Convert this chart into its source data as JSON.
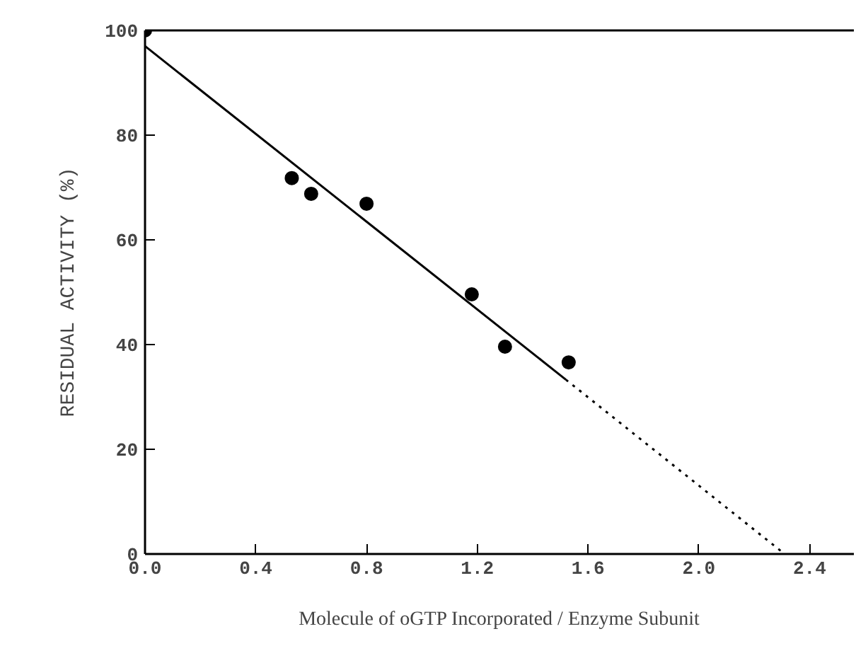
{
  "chart_data": {
    "type": "scatter",
    "xlabel": "Molecule of oGTP Incorporated / Enzyme Subunit",
    "ylabel": "RESIDUAL ACTIVITY (%)",
    "xlim": [
      0,
      2.56
    ],
    "ylim": [
      0,
      100
    ],
    "xticks": [
      {
        "value": 0,
        "label": "0.0"
      },
      0.4,
      0.8,
      1.2,
      1.6,
      {
        "value": 2,
        "label": "2.0"
      },
      2.4
    ],
    "yticks": [
      0,
      20,
      40,
      60,
      80,
      100
    ],
    "grid": false,
    "series": [
      {
        "color": "#000000",
        "marker": "circle",
        "x": [
          0,
          0.53,
          0.6,
          0.8,
          1.18,
          1.3,
          1.53
        ],
        "values": [
          100,
          71.8,
          68.8,
          66.9,
          49.6,
          39.6,
          36.6
        ]
      },
      {
        "type": "line",
        "color": "#000000",
        "line_style": "solid",
        "marker": "none",
        "x": [
          0,
          1.52
        ],
        "values": [
          97,
          33.3
        ]
      },
      {
        "type": "line",
        "color": "#000000",
        "line_style": "dotted",
        "marker": "none",
        "x": [
          1.52,
          2.31
        ],
        "values": [
          33.3,
          0
        ]
      }
    ]
  }
}
